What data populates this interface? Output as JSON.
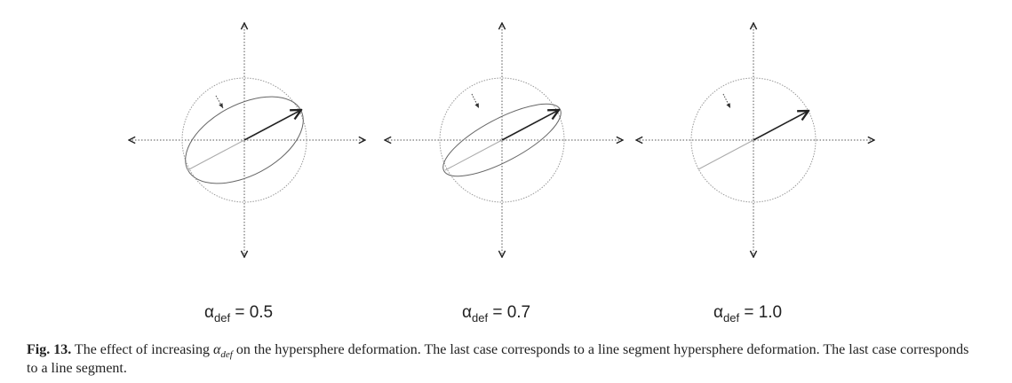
{
  "figure": {
    "panels": [
      {
        "alpha_symbol": "α",
        "subscript": "def",
        "value_text": " = 0.5",
        "alpha_def": 0.5
      },
      {
        "alpha_symbol": "α",
        "subscript": "def",
        "value_text": " = 0.7",
        "alpha_def": 0.7
      },
      {
        "alpha_symbol": "α",
        "subscript": "def",
        "value_text": " = 1.0",
        "alpha_def": 1.0
      }
    ]
  },
  "caption": {
    "fig_number": "Fig. 13.",
    "text_before": " The effect of increasing ",
    "alpha_symbol": "α",
    "alpha_subscript": "def",
    "text_after": " on the hypersphere deformation. The last case corresponds to a line segment hypersphere deformation. The last case corresponds to a line segment."
  }
}
